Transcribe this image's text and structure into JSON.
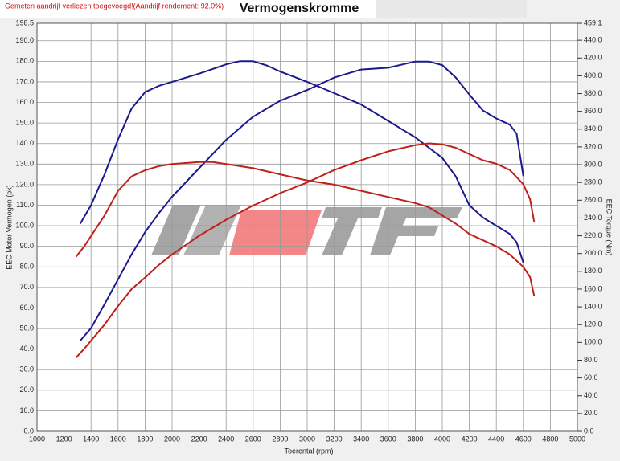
{
  "chart_data": {
    "type": "line",
    "title": "Vermogenskromme",
    "note": "Gemeten aandrijf verliezen toegevoegd!(Aandrijf rendement: 92.0%)",
    "xlabel": "Toerental (rpm)",
    "ylabel": "EEC Motor Vermogen (pk)",
    "y2label": "EEC Torque (Nm)",
    "grid": true,
    "xlim": [
      1000,
      5000
    ],
    "xticks": [
      1000,
      1200,
      1400,
      1600,
      1800,
      2000,
      2200,
      2400,
      2600,
      2800,
      3000,
      3200,
      3400,
      3600,
      3800,
      4000,
      4200,
      4400,
      4600,
      4800,
      5000
    ],
    "ylim": [
      0,
      198.5
    ],
    "yticks": [
      {
        "value": 0,
        "label": "0.0"
      },
      {
        "value": 10,
        "label": "10.0"
      },
      {
        "value": 20,
        "label": "20.0"
      },
      {
        "value": 30,
        "label": "30.0"
      },
      {
        "value": 40,
        "label": "40.0"
      },
      {
        "value": 50,
        "label": "50.0"
      },
      {
        "value": 60,
        "label": "60.0"
      },
      {
        "value": 70,
        "label": "70.0"
      },
      {
        "value": 80,
        "label": "80.0"
      },
      {
        "value": 90,
        "label": "90.0"
      },
      {
        "value": 100,
        "label": "100.0"
      },
      {
        "value": 110,
        "label": "110.0"
      },
      {
        "value": 120,
        "label": "120.0"
      },
      {
        "value": 130,
        "label": "130.0"
      },
      {
        "value": 140,
        "label": "140.0"
      },
      {
        "value": 150,
        "label": "150.0"
      },
      {
        "value": 160,
        "label": "160.0"
      },
      {
        "value": 170,
        "label": "170.0"
      },
      {
        "value": 180,
        "label": "180.0"
      },
      {
        "value": 190,
        "label": "190.0"
      },
      198.5
    ],
    "y2lim": [
      0,
      459.1
    ],
    "y2ticks": [
      {
        "value": 0,
        "label": "0.0"
      },
      {
        "value": 20,
        "label": "20.0"
      },
      {
        "value": 40,
        "label": "40.0"
      },
      {
        "value": 60,
        "label": "60.0"
      },
      {
        "value": 80,
        "label": "80.0"
      },
      {
        "value": 100,
        "label": "100.0"
      },
      {
        "value": 120,
        "label": "120.0"
      },
      {
        "value": 140,
        "label": "140.0"
      },
      {
        "value": 160,
        "label": "160.0"
      },
      {
        "value": 180,
        "label": "180.0"
      },
      {
        "value": 200,
        "label": "200.0"
      },
      {
        "value": 220,
        "label": "220.0"
      },
      {
        "value": 240,
        "label": "240.0"
      },
      {
        "value": 260,
        "label": "260.0"
      },
      {
        "value": 280,
        "label": "280.0"
      },
      {
        "value": 300,
        "label": "300.0"
      },
      {
        "value": 320,
        "label": "320.0"
      },
      {
        "value": 340,
        "label": "340.0"
      },
      {
        "value": 360,
        "label": "360.0"
      },
      {
        "value": 380,
        "label": "380.0"
      },
      {
        "value": 400,
        "label": "400.0"
      },
      {
        "value": 420,
        "label": "420.0"
      },
      {
        "value": 440,
        "label": "440.0"
      },
      459.1
    ],
    "series": [
      {
        "color": "#1a1a8c",
        "axis": "y",
        "x": [
          1320,
          1400,
          1500,
          1600,
          1700,
          1800,
          1900,
          2000,
          2200,
          2400,
          2500,
          2600,
          2700,
          2800,
          3000,
          3200,
          3400,
          3600,
          3800,
          3900,
          4000,
          4100,
          4200,
          4300,
          4400,
          4500,
          4550,
          4600
        ],
        "values": [
          101,
          110,
          125,
          142,
          157,
          165,
          168,
          170,
          174,
          178.5,
          180,
          180,
          178,
          175,
          170,
          164.5,
          159,
          151,
          143,
          138,
          133,
          124,
          110,
          104,
          100,
          96,
          92,
          82
        ]
      },
      {
        "color": "#1a1a8c",
        "axis": "y2",
        "x": [
          1320,
          1400,
          1500,
          1600,
          1700,
          1800,
          1900,
          2000,
          2200,
          2400,
          2600,
          2800,
          3000,
          3200,
          3400,
          3600,
          3800,
          3900,
          4000,
          4100,
          4200,
          4300,
          4400,
          4500,
          4550,
          4600
        ],
        "values": [
          102,
          116,
          143,
          171,
          199,
          224,
          245,
          264,
          296,
          328,
          354,
          372,
          384,
          398,
          407,
          409,
          416,
          416,
          412,
          398,
          379,
          361,
          352,
          345,
          335,
          287
        ]
      },
      {
        "color": "#c0201a",
        "axis": "y",
        "x": [
          1290,
          1350,
          1400,
          1500,
          1600,
          1700,
          1800,
          1900,
          2000,
          2200,
          2300,
          2400,
          2600,
          2800,
          3000,
          3200,
          3400,
          3600,
          3800,
          3900,
          4000,
          4100,
          4200,
          4400,
          4500,
          4600,
          4650,
          4680
        ],
        "values": [
          85,
          90,
          95,
          105,
          117,
          124,
          127,
          129,
          130,
          131,
          131,
          130,
          128,
          125,
          122,
          120,
          117,
          114,
          111,
          109,
          105,
          101,
          96,
          90,
          86,
          80,
          75,
          66
        ]
      },
      {
        "color": "#c0201a",
        "axis": "y2",
        "x": [
          1290,
          1350,
          1400,
          1500,
          1600,
          1700,
          1800,
          1900,
          2000,
          2200,
          2400,
          2600,
          2800,
          3000,
          3200,
          3400,
          3600,
          3800,
          3900,
          4000,
          4100,
          4200,
          4300,
          4400,
          4500,
          4600,
          4650,
          4680
        ],
        "values": [
          83,
          93,
          102,
          120,
          141,
          160,
          173,
          187,
          199,
          220,
          238,
          254,
          268,
          280,
          294,
          305,
          315,
          322,
          324,
          323,
          319,
          312,
          305,
          301,
          294,
          278,
          261,
          236
        ]
      }
    ]
  }
}
